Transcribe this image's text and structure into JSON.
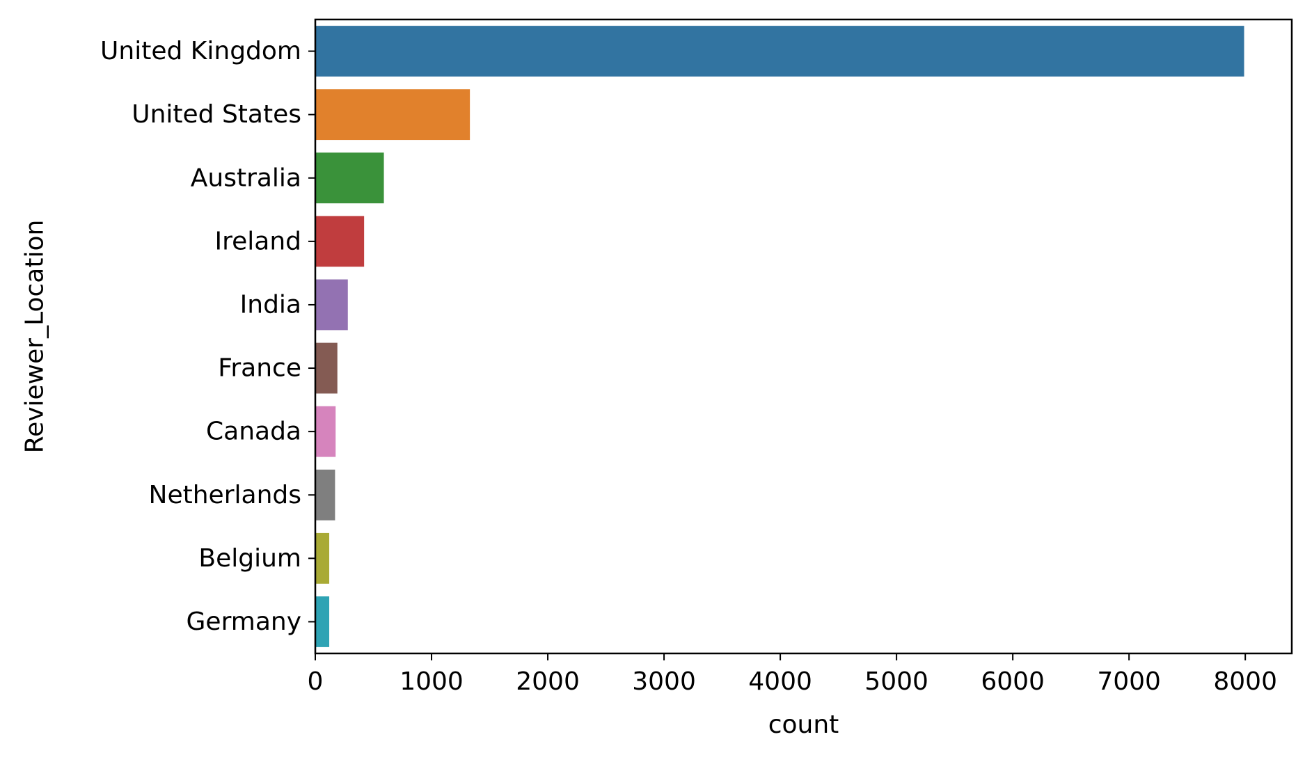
{
  "chart_data": {
    "type": "bar",
    "orientation": "horizontal",
    "categories": [
      "United Kingdom",
      "United States",
      "Australia",
      "Ireland",
      "India",
      "France",
      "Canada",
      "Netherlands",
      "Belgium",
      "Germany"
    ],
    "values": [
      7990,
      1330,
      590,
      420,
      280,
      190,
      175,
      170,
      120,
      120
    ],
    "colors": [
      "#3274a1",
      "#e1812c",
      "#3a923a",
      "#c03d3e",
      "#9372b2",
      "#845b53",
      "#d684bd",
      "#7f7f7f",
      "#a9aa35",
      "#2ea3b4"
    ],
    "xlabel": "count",
    "ylabel": "Reviewer_Location",
    "xlim": [
      0,
      8400
    ],
    "xticks": [
      0,
      1000,
      2000,
      3000,
      4000,
      5000,
      6000,
      7000,
      8000
    ],
    "grid": false,
    "legend": "none"
  }
}
